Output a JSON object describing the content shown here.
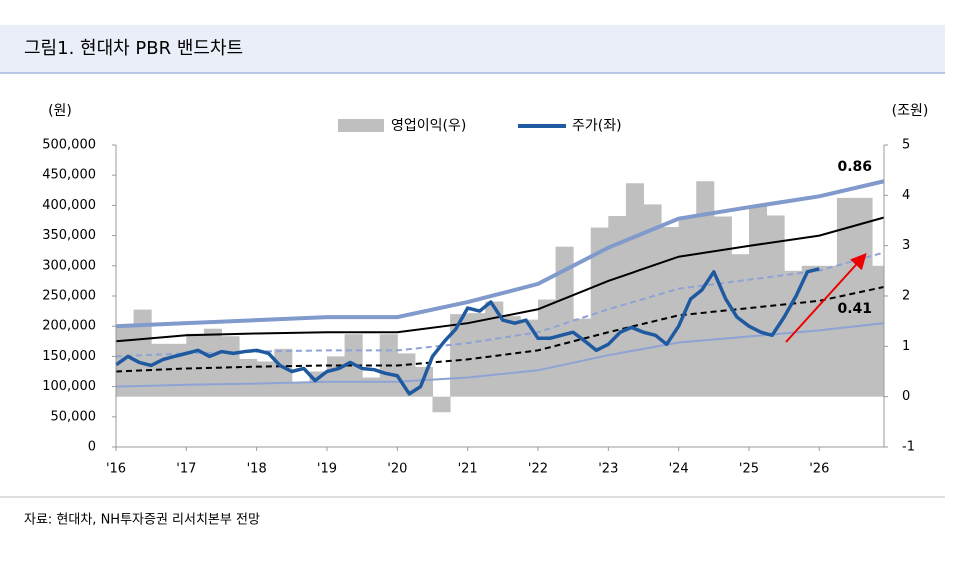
{
  "chart_data": {
    "type": "pbr-band",
    "title": "그림1. 현대차 PBR 밴드차트",
    "y_label": "(원)",
    "y2_label": "(조원)",
    "source": "자료: 현대차, NH투자증권 리서치본부 전망",
    "xlim": [
      2016,
      2026.92
    ],
    "xticks": [
      {
        "value": 2016,
        "label": "'16"
      },
      {
        "value": 2017,
        "label": "'17"
      },
      {
        "value": 2018,
        "label": "'18"
      },
      {
        "value": 2019,
        "label": "'19"
      },
      {
        "value": 2020,
        "label": "'20"
      },
      {
        "value": 2021,
        "label": "'21"
      },
      {
        "value": 2022,
        "label": "'22"
      },
      {
        "value": 2023,
        "label": "'23"
      },
      {
        "value": 2024,
        "label": "'24"
      },
      {
        "value": 2025,
        "label": "'25"
      },
      {
        "value": 2026,
        "label": "'26"
      }
    ],
    "ylim": [
      0,
      500000
    ],
    "yticks": [
      0,
      {
        "value": 50000,
        "label": "50,000"
      },
      {
        "value": 100000,
        "label": "100,000"
      },
      {
        "value": 150000,
        "label": "150,000"
      },
      {
        "value": 200000,
        "label": "200,000"
      },
      {
        "value": 250000,
        "label": "250,000"
      },
      {
        "value": 300000,
        "label": "300,000"
      },
      {
        "value": 350000,
        "label": "350,000"
      },
      {
        "value": 400000,
        "label": "400,000"
      },
      {
        "value": 450000,
        "label": "450,000"
      },
      {
        "value": 500000,
        "label": "500,000"
      }
    ],
    "y2lim": [
      -1,
      5
    ],
    "y2ticks": [
      -1,
      0,
      1,
      2,
      3,
      4,
      5
    ],
    "series": [
      {
        "name": "영업이익(우)",
        "color": "#bfbfbf",
        "axis": "y2",
        "kind": "area",
        "x": [
          2016,
          2016.25,
          2016.5,
          2016.75,
          2017,
          2017.25,
          2017.5,
          2017.75,
          2018,
          2018.25,
          2018.5,
          2018.75,
          2019,
          2019.25,
          2019.5,
          2019.75,
          2020,
          2020.25,
          2020.5,
          2020.75,
          2021,
          2021.25,
          2021.5,
          2021.75,
          2022,
          2022.25,
          2022.5,
          2022.75,
          2023,
          2023.25,
          2023.5,
          2023.75,
          2024,
          2024.25,
          2024.5,
          2024.75,
          2025,
          2025.25,
          2025.5,
          2025.75,
          2026,
          2026.25,
          2026.5,
          2026.75
        ],
        "values": [
          1.4,
          1.73,
          1.05,
          1.05,
          1.25,
          1.35,
          1.2,
          0.75,
          0.7,
          0.95,
          0.29,
          0.5,
          0.8,
          1.24,
          0.38,
          1.24,
          0.86,
          0.59,
          -0.31,
          1.64,
          1.66,
          1.89,
          1.6,
          1.53,
          1.93,
          2.98,
          1.55,
          3.36,
          3.59,
          4.24,
          3.82,
          3.37,
          3.56,
          4.28,
          3.58,
          2.83,
          3.8,
          3.6,
          2.5,
          2.6,
          2.6,
          3.95,
          3.95,
          2.6
        ]
      },
      {
        "name": "주가(좌)",
        "color": "#1f5aa0",
        "kind": "line",
        "x": [
          2016,
          2016.17,
          2016.33,
          2016.5,
          2016.67,
          2016.83,
          2017,
          2017.17,
          2017.33,
          2017.5,
          2017.67,
          2017.83,
          2018,
          2018.17,
          2018.33,
          2018.5,
          2018.67,
          2018.83,
          2019,
          2019.17,
          2019.33,
          2019.5,
          2019.67,
          2019.83,
          2020,
          2020.17,
          2020.33,
          2020.5,
          2020.67,
          2020.83,
          2021,
          2021.17,
          2021.33,
          2021.5,
          2021.67,
          2021.83,
          2022,
          2022.17,
          2022.33,
          2022.5,
          2022.67,
          2022.83,
          2023,
          2023.17,
          2023.33,
          2023.5,
          2023.67,
          2023.83,
          2024,
          2024.17,
          2024.33,
          2024.5,
          2024.67,
          2024.83,
          2025,
          2025.17,
          2025.33,
          2025.5,
          2025.67,
          2025.83,
          2026
        ],
        "values": [
          136000,
          150000,
          140000,
          135000,
          145000,
          150000,
          155000,
          160000,
          150000,
          158000,
          155000,
          158000,
          160000,
          155000,
          135000,
          125000,
          130000,
          110000,
          125000,
          130000,
          140000,
          130000,
          128000,
          122000,
          118000,
          88000,
          100000,
          150000,
          175000,
          195000,
          230000,
          225000,
          240000,
          210000,
          205000,
          210000,
          180000,
          180000,
          185000,
          190000,
          175000,
          160000,
          170000,
          190000,
          198000,
          190000,
          185000,
          170000,
          200000,
          245000,
          260000,
          290000,
          245000,
          215000,
          200000,
          190000,
          185000,
          215000,
          250000,
          290000,
          295000
        ]
      }
    ],
    "bands": [
      {
        "color": "#7f9acb",
        "width": 4,
        "dash": false,
        "label": "0.86",
        "x": [
          2016,
          2017,
          2018,
          2019,
          2020,
          2021,
          2022,
          2023,
          2024,
          2025,
          2026,
          2026.92
        ],
        "values": [
          200000,
          205000,
          210000,
          215000,
          215000,
          240000,
          270000,
          330000,
          378000,
          397000,
          415000,
          440000
        ]
      },
      {
        "color": "#000000",
        "width": 2,
        "dash": false,
        "x": [
          2016,
          2017,
          2018,
          2019,
          2020,
          2021,
          2022,
          2023,
          2024,
          2025,
          2026,
          2026.92
        ],
        "values": [
          175000,
          185000,
          188000,
          190000,
          190000,
          205000,
          228000,
          275000,
          315000,
          333000,
          350000,
          380000
        ]
      },
      {
        "color": "#8ea3d4",
        "width": 2,
        "dash": true,
        "x": [
          2016,
          2017,
          2018,
          2019,
          2020,
          2021,
          2022,
          2023,
          2024,
          2025,
          2026,
          2026.92
        ],
        "values": [
          150000,
          155000,
          158000,
          160000,
          160000,
          172000,
          190000,
          228000,
          262000,
          277000,
          292000,
          322000
        ]
      },
      {
        "color": "#000000",
        "width": 2,
        "dash": true,
        "x": [
          2016,
          2017,
          2018,
          2019,
          2020,
          2021,
          2022,
          2023,
          2024,
          2025,
          2026,
          2026.92
        ],
        "values": [
          125000,
          130000,
          133000,
          135000,
          135000,
          145000,
          160000,
          190000,
          218000,
          230000,
          242000,
          265000
        ]
      },
      {
        "color": "#8ea3d4",
        "width": 2,
        "dash": false,
        "label": "0.41",
        "x": [
          2016,
          2017,
          2018,
          2019,
          2020,
          2021,
          2022,
          2023,
          2024,
          2025,
          2026,
          2026.92
        ],
        "values": [
          100000,
          103000,
          105000,
          108000,
          108000,
          115000,
          127000,
          152000,
          173000,
          183000,
          193000,
          205000
        ]
      }
    ]
  }
}
